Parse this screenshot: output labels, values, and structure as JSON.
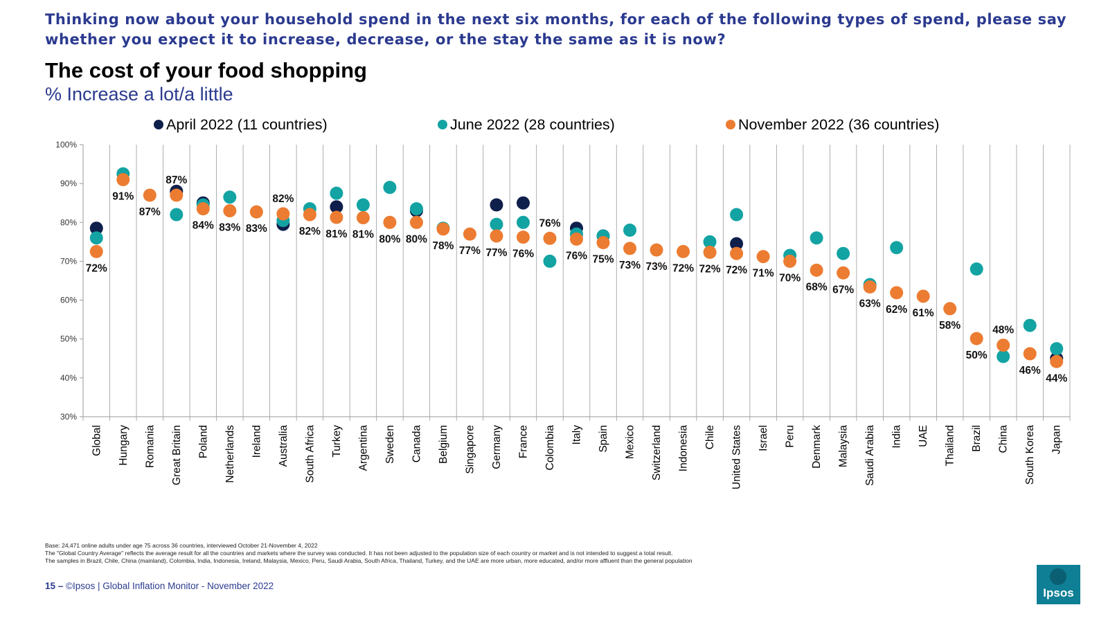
{
  "header": {
    "question": "Thinking now about your household spend in the next six months, for each of the following types of spend, please say whether you expect it to increase, decrease, or the stay the same as it is now?"
  },
  "colors": {
    "april": "#0f1f4b",
    "june": "#13a3a3",
    "november": "#ec7c31",
    "heading": "#2b3a8f"
  },
  "chart_data": {
    "type": "scatter",
    "title": "The cost of your food shopping",
    "subtitle": "% Increase a lot/a little",
    "ylim": [
      30,
      100
    ],
    "yticks": [
      "30%",
      "40%",
      "50%",
      "60%",
      "70%",
      "80%",
      "90%",
      "100%"
    ],
    "grid": "vertical",
    "legend_position": "top",
    "categories": [
      "Global",
      "Hungary",
      "Romania",
      "Great Britain",
      "Poland",
      "Netherlands",
      "Ireland",
      "Australia",
      "South Africa",
      "Turkey",
      "Argentina",
      "Sweden",
      "Canada",
      "Belgium",
      "Singapore",
      "Germany",
      "France",
      "Colombia",
      "Italy",
      "Spain",
      "Mexico",
      "Switzerland",
      "Indonesia",
      "Chile",
      "United States",
      "Israel",
      "Peru",
      "Denmark",
      "Malaysia",
      "Saudi Arabia",
      "India",
      "UAE",
      "Thailand",
      "Brazil",
      "China",
      "South Korea",
      "Japan"
    ],
    "series": [
      {
        "name": "April 2022 (11 countries)",
        "key": "april",
        "values": [
          78.5,
          null,
          null,
          88,
          85,
          null,
          null,
          79.5,
          null,
          84,
          null,
          null,
          83,
          null,
          null,
          84.5,
          85,
          null,
          78.5,
          76.5,
          null,
          null,
          null,
          null,
          74.5,
          null,
          null,
          null,
          null,
          null,
          null,
          null,
          null,
          null,
          null,
          null,
          45
        ]
      },
      {
        "name": "June 2022 (28 countries)",
        "key": "june",
        "values": [
          76,
          92.5,
          null,
          82,
          84.5,
          86.5,
          null,
          80.5,
          83.5,
          87.5,
          84.5,
          89,
          83.5,
          78.5,
          null,
          79.5,
          80,
          70,
          77,
          76.5,
          78,
          null,
          null,
          75,
          82,
          null,
          71.5,
          76,
          72,
          64,
          73.5,
          null,
          null,
          68,
          45.5,
          53.5,
          47.5
        ]
      },
      {
        "name": "November 2022 (36 countries)",
        "key": "november",
        "values": [
          72.5,
          91,
          87,
          87,
          83.5,
          83,
          82.7,
          82.2,
          82,
          81.3,
          81.2,
          80,
          80,
          78.3,
          77,
          76.5,
          76.2,
          75.9,
          75.7,
          74.8,
          73.3,
          72.9,
          72.5,
          72.3,
          72,
          71.2,
          70,
          67.7,
          67,
          63.4,
          61.9,
          61,
          57.8,
          50.1,
          48.4,
          46.2,
          44.2
        ]
      }
    ],
    "data_labels": [
      "72%",
      "91%",
      "87%",
      "87%",
      "84%",
      "83%",
      "83%",
      "82%",
      "82%",
      "81%",
      "81%",
      "80%",
      "80%",
      "78%",
      "77%",
      "77%",
      "76%",
      "76%",
      "76%",
      "75%",
      "73%",
      "73%",
      "72%",
      "72%",
      "72%",
      "71%",
      "70%",
      "68%",
      "67%",
      "63%",
      "62%",
      "61%",
      "58%",
      "50%",
      "48%",
      "46%",
      "44%"
    ],
    "data_label_side": [
      "below",
      "below",
      "below",
      "above",
      "below",
      "below",
      "below",
      "above",
      "below",
      "below",
      "below",
      "below",
      "below",
      "below",
      "below",
      "below",
      "below",
      "above",
      "below",
      "below",
      "below",
      "below",
      "below",
      "below",
      "below",
      "below",
      "below",
      "below",
      "below",
      "below",
      "below",
      "below",
      "below",
      "below",
      "above",
      "below",
      "below"
    ]
  },
  "footnotes": [
    "Base: 24,471 online adults under age 75 across 36 countries, interviewed October 21-November 4, 2022",
    "The \"Global Country Average\" reflects the average result for all the countries and markets where the survey was conducted. It has not been adjusted to the population size of each country or market and is not intended to suggest a total result.",
    "The samples in Brazil, Chile, China (mainland), Colombia, India, Indonesia, Ireland, Malaysia, Mexico, Peru, Saudi Arabia, South Africa, Thailand, Turkey, and the UAE are more urban, more educated, and/or more affluent than the general population"
  ],
  "footer": {
    "page": "15 –",
    "text": "©Ipsos | Global Inflation Monitor - November 2022"
  },
  "logo": {
    "text": "Ipsos"
  }
}
